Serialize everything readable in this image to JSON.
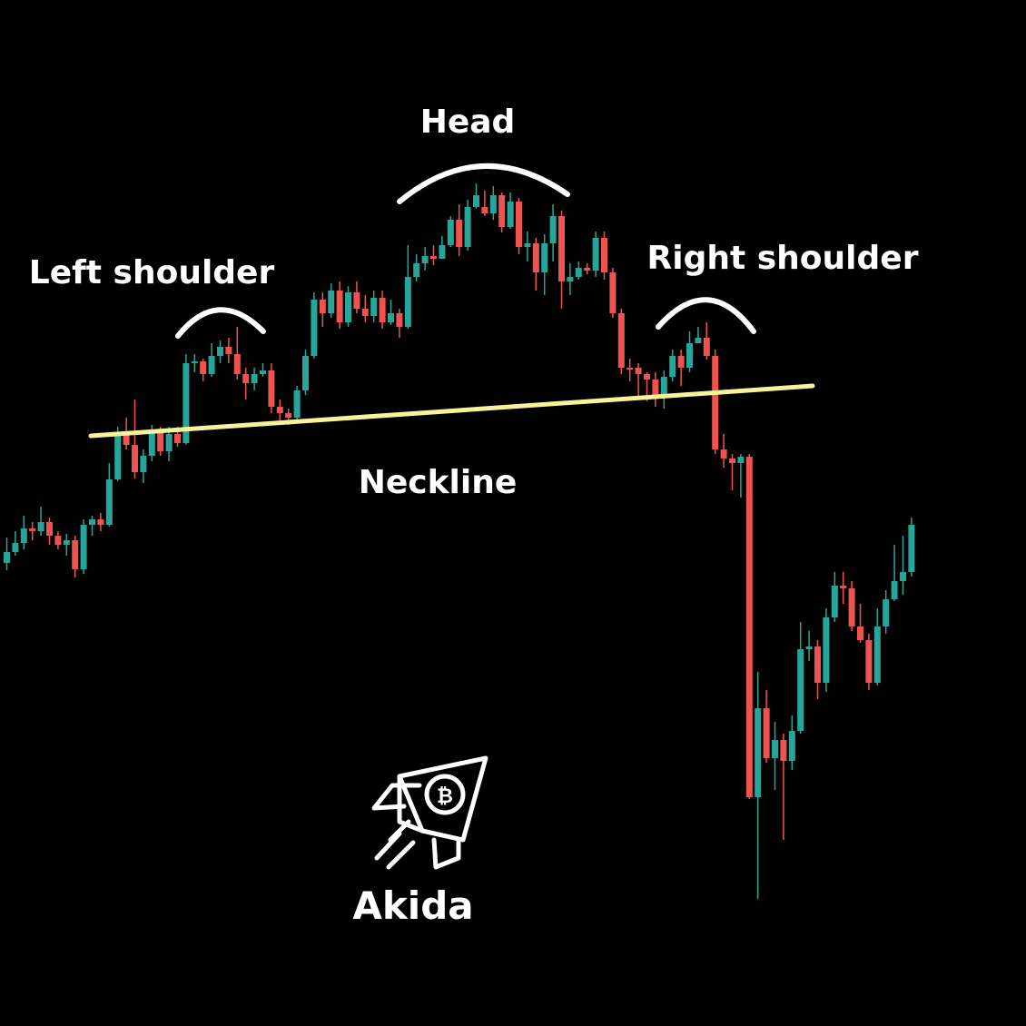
{
  "chart_data": {
    "type": "candlestick",
    "title": "",
    "xlabel": "",
    "ylabel": "",
    "colors": {
      "up": "#26a69a",
      "down": "#ef5350",
      "neckline": "#f7f39a",
      "text": "#ffffff",
      "background": "#000000"
    },
    "candles": [
      [
        0,
        0,
        620,
        608,
        628,
        592
      ],
      [
        0,
        1,
        608,
        598,
        612,
        585
      ],
      [
        1,
        0,
        598,
        582,
        605,
        568
      ],
      [
        1,
        1,
        582,
        585,
        595,
        575
      ],
      [
        0,
        1,
        585,
        575,
        590,
        558
      ],
      [
        0,
        0,
        575,
        590,
        600,
        570
      ],
      [
        0,
        1,
        590,
        600,
        605,
        585
      ],
      [
        1,
        0,
        600,
        595,
        612,
        588
      ],
      [
        1,
        1,
        595,
        627,
        636,
        590
      ],
      [
        1,
        0,
        627,
        578,
        632,
        572
      ],
      [
        1,
        1,
        578,
        572,
        590,
        568
      ],
      [
        0,
        0,
        572,
        578,
        585,
        565
      ],
      [
        1,
        0,
        578,
        528,
        580,
        510
      ],
      [
        1,
        1,
        528,
        478,
        530,
        470
      ],
      [
        1,
        0,
        478,
        490,
        495,
        460
      ],
      [
        0,
        1,
        490,
        520,
        527,
        440
      ],
      [
        1,
        0,
        520,
        502,
        532,
        495
      ],
      [
        0,
        1,
        502,
        475,
        508,
        468
      ],
      [
        0,
        0,
        475,
        497,
        502,
        470
      ],
      [
        1,
        1,
        497,
        478,
        508,
        470
      ],
      [
        0,
        1,
        478,
        488,
        492,
        470
      ],
      [
        1,
        0,
        488,
        400,
        490,
        390
      ],
      [
        0,
        1,
        400,
        398,
        410,
        390
      ],
      [
        0,
        0,
        398,
        412,
        420,
        395
      ],
      [
        1,
        1,
        412,
        392,
        415,
        378
      ],
      [
        0,
        1,
        392,
        382,
        400,
        375
      ],
      [
        1,
        0,
        382,
        390,
        400,
        372
      ],
      [
        0,
        1,
        390,
        412,
        418,
        360
      ],
      [
        1,
        0,
        412,
        422,
        440,
        405
      ],
      [
        0,
        1,
        422,
        412,
        430,
        405
      ],
      [
        1,
        1,
        412,
        408,
        415,
        400
      ],
      [
        0,
        0,
        408,
        448,
        455,
        400
      ],
      [
        0,
        1,
        448,
        455,
        467,
        440
      ],
      [
        1,
        0,
        455,
        460,
        468,
        450
      ],
      [
        1,
        1,
        460,
        430,
        464,
        425
      ],
      [
        1,
        0,
        430,
        392,
        435,
        385
      ],
      [
        1,
        1,
        392,
        330,
        395,
        322
      ],
      [
        0,
        0,
        330,
        345,
        360,
        322
      ],
      [
        1,
        0,
        345,
        320,
        350,
        312
      ],
      [
        0,
        1,
        320,
        355,
        362,
        310
      ],
      [
        0,
        0,
        355,
        322,
        360,
        315
      ],
      [
        0,
        1,
        322,
        340,
        345,
        310
      ],
      [
        1,
        0,
        340,
        348,
        355,
        325
      ],
      [
        0,
        1,
        348,
        328,
        355,
        320
      ],
      [
        0,
        0,
        328,
        355,
        362,
        320
      ],
      [
        1,
        1,
        355,
        345,
        358,
        330
      ],
      [
        1,
        0,
        345,
        360,
        372,
        340
      ],
      [
        1,
        1,
        360,
        305,
        362,
        270
      ],
      [
        1,
        0,
        305,
        290,
        310,
        280
      ],
      [
        1,
        1,
        290,
        282,
        298,
        272
      ],
      [
        0,
        0,
        282,
        285,
        292,
        270
      ],
      [
        1,
        0,
        285,
        270,
        285,
        260
      ],
      [
        1,
        1,
        270,
        242,
        272,
        238
      ],
      [
        1,
        0,
        242,
        272,
        282,
        225
      ],
      [
        0,
        0,
        272,
        228,
        276,
        220
      ],
      [
        1,
        0,
        228,
        215,
        230,
        202
      ],
      [
        0,
        1,
        228,
        235,
        238,
        210
      ],
      [
        1,
        0,
        235,
        215,
        242,
        205
      ],
      [
        0,
        1,
        215,
        250,
        256,
        212
      ],
      [
        1,
        1,
        250,
        222,
        252,
        212
      ],
      [
        0,
        0,
        222,
        272,
        280,
        218
      ],
      [
        0,
        1,
        272,
        268,
        288,
        255
      ],
      [
        1,
        0,
        268,
        300,
        320,
        262
      ],
      [
        0,
        1,
        300,
        268,
        325,
        258
      ],
      [
        0,
        0,
        268,
        238,
        288,
        225
      ],
      [
        1,
        1,
        238,
        310,
        340,
        232
      ],
      [
        0,
        1,
        310,
        305,
        325,
        290
      ],
      [
        1,
        0,
        305,
        295,
        308,
        288
      ],
      [
        0,
        1,
        295,
        298,
        302,
        290
      ],
      [
        1,
        0,
        298,
        262,
        305,
        255
      ],
      [
        0,
        0,
        262,
        300,
        308,
        255
      ],
      [
        1,
        1,
        300,
        345,
        350,
        295
      ],
      [
        0,
        1,
        345,
        405,
        412,
        340
      ],
      [
        0,
        0,
        405,
        405,
        420,
        395
      ],
      [
        1,
        0,
        405,
        412,
        440,
        400
      ],
      [
        1,
        1,
        412,
        418,
        442,
        410
      ],
      [
        0,
        0,
        418,
        438,
        448,
        410
      ],
      [
        0,
        1,
        438,
        415,
        450,
        408
      ],
      [
        1,
        0,
        415,
        392,
        420,
        385
      ],
      [
        0,
        1,
        392,
        405,
        425,
        385
      ],
      [
        1,
        1,
        405,
        378,
        410,
        365
      ],
      [
        0,
        0,
        378,
        372,
        378,
        360
      ],
      [
        1,
        0,
        372,
        392,
        396,
        355
      ],
      [
        1,
        1,
        392,
        495,
        500,
        385
      ],
      [
        0,
        0,
        495,
        505,
        515,
        478
      ],
      [
        0,
        1,
        505,
        510,
        540,
        500
      ],
      [
        1,
        0,
        510,
        503,
        548,
        500
      ],
      [
        0,
        1,
        503,
        878,
        880,
        500
      ],
      [
        1,
        0,
        878,
        780,
        990,
        740
      ],
      [
        1,
        1,
        780,
        835,
        840,
        760
      ],
      [
        0,
        0,
        835,
        815,
        870,
        795
      ],
      [
        0,
        1,
        815,
        838,
        925,
        808
      ],
      [
        1,
        0,
        838,
        805,
        848,
        788
      ],
      [
        1,
        1,
        805,
        715,
        808,
        685
      ],
      [
        0,
        0,
        715,
        712,
        728,
        695
      ],
      [
        1,
        1,
        712,
        752,
        770,
        705
      ],
      [
        0,
        1,
        752,
        680,
        762,
        670
      ],
      [
        1,
        0,
        680,
        645,
        685,
        630
      ],
      [
        1,
        1,
        645,
        648,
        665,
        630
      ],
      [
        0,
        0,
        648,
        690,
        695,
        640
      ],
      [
        0,
        1,
        690,
        705,
        708,
        665
      ],
      [
        0,
        0,
        705,
        752,
        760,
        698
      ],
      [
        1,
        0,
        752,
        690,
        755,
        670
      ],
      [
        1,
        1,
        690,
        660,
        698,
        650
      ],
      [
        0,
        0,
        660,
        640,
        662,
        600
      ],
      [
        1,
        1,
        640,
        630,
        655,
        590
      ],
      [
        1,
        0,
        630,
        578,
        635,
        570
      ]
    ],
    "neckline": {
      "from": {
        "x": 100,
        "price": 480
      },
      "to": {
        "x": 895,
        "price": 425
      }
    },
    "annotations": [
      {
        "label": "Left shoulder"
      },
      {
        "label": "Head"
      },
      {
        "label": "Right shoulder"
      },
      {
        "label": "Neckline"
      }
    ]
  },
  "brand": {
    "name": "Akida",
    "logo_icon": "rocket-bitcoin-icon"
  }
}
